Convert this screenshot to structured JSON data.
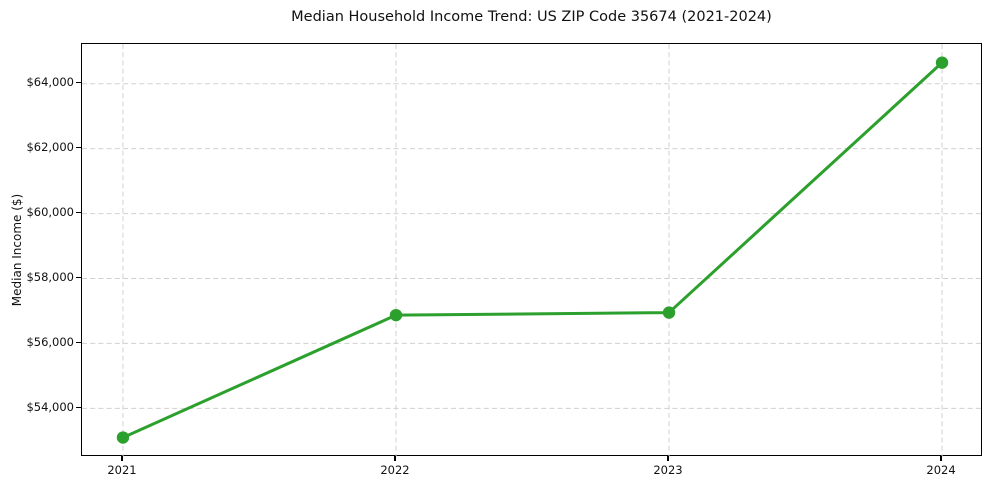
{
  "chart_data": {
    "type": "line",
    "title": "Median Household Income Trend: US ZIP Code 35674 (2021-2024)",
    "xlabel": "",
    "ylabel": "Median Income ($)",
    "x": [
      2021,
      2022,
      2023,
      2024
    ],
    "x_tick_labels": [
      "2021",
      "2022",
      "2023",
      "2024"
    ],
    "series": [
      {
        "name": "Median Household Income",
        "values": [
          53100,
          56870,
          56950,
          64650
        ]
      }
    ],
    "y_ticks": [
      54000,
      56000,
      58000,
      60000,
      62000,
      64000
    ],
    "y_tick_labels": [
      "$54,000",
      "$56,000",
      "$58,000",
      "$60,000",
      "$62,000",
      "$64,000"
    ],
    "xlim": [
      2020.85,
      2024.15
    ],
    "ylim": [
      52500,
      65225
    ],
    "grid": true,
    "grid_style": "dashed",
    "legend": false,
    "line_color": "#2ca02c",
    "grid_color": "#d0d0d0",
    "marker": "circle",
    "marker_color": "#2ca02c"
  }
}
